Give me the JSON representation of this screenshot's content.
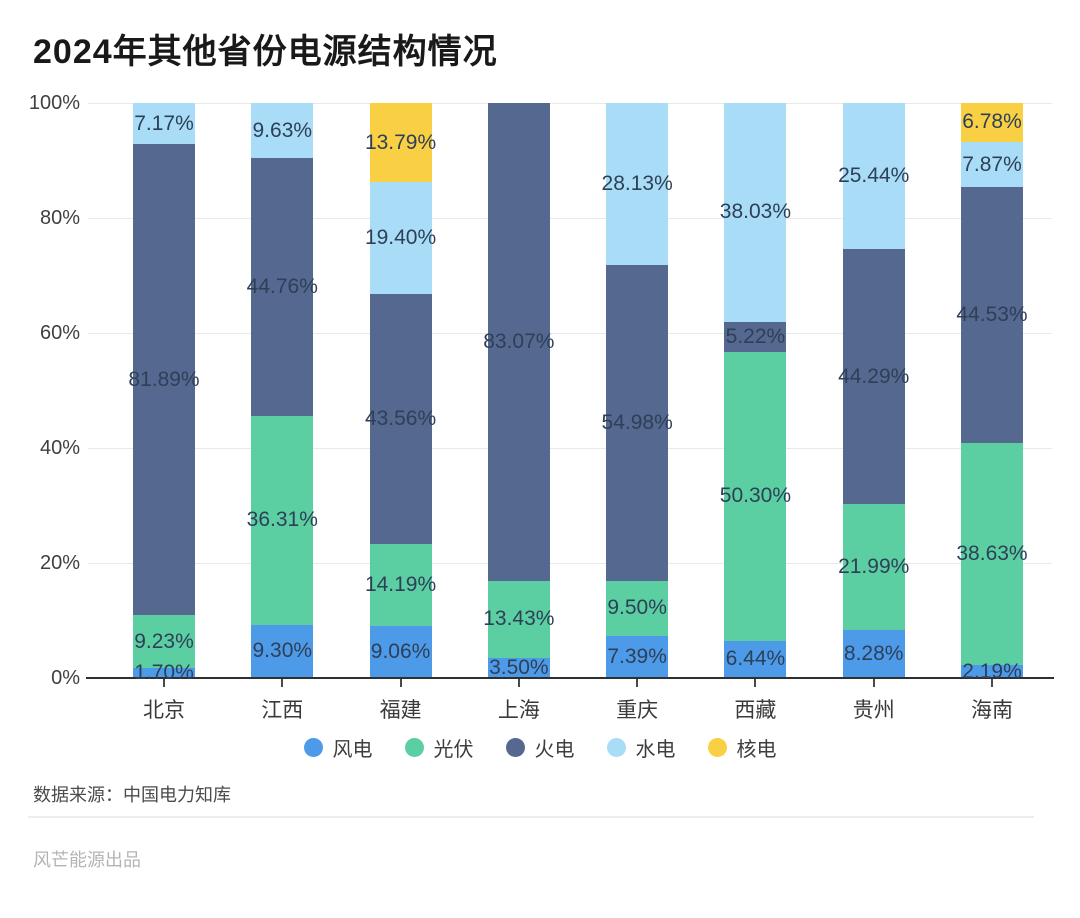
{
  "title": "2024年其他省份电源结构情况",
  "chart_data": {
    "type": "bar",
    "stacked": true,
    "title": "2024年其他省份电源结构情况",
    "xlabel": "",
    "ylabel": "",
    "unit": "%",
    "ylim": [
      0,
      100
    ],
    "yticks": [
      "0%",
      "20%",
      "40%",
      "60%",
      "80%",
      "100%"
    ],
    "grid": true,
    "legend_position": "bottom",
    "categories": [
      "北京",
      "江西",
      "福建",
      "上海",
      "重庆",
      "西藏",
      "贵州",
      "海南"
    ],
    "series": [
      {
        "name": "风电",
        "color": "#4d9ae8",
        "values": [
          1.7,
          9.3,
          9.06,
          3.5,
          7.39,
          6.44,
          8.28,
          2.19
        ]
      },
      {
        "name": "光伏",
        "color": "#5bcfa1",
        "values": [
          9.23,
          36.31,
          14.19,
          13.43,
          9.5,
          50.3,
          21.99,
          38.63
        ]
      },
      {
        "name": "火电",
        "color": "#556890",
        "values": [
          81.89,
          44.76,
          43.56,
          83.07,
          54.98,
          5.22,
          44.29,
          44.53
        ]
      },
      {
        "name": "水电",
        "color": "#a9ddf7",
        "values": [
          7.17,
          9.63,
          19.4,
          0,
          28.13,
          38.03,
          25.44,
          7.87
        ]
      },
      {
        "name": "核电",
        "color": "#f9cf44",
        "values": [
          0,
          0,
          13.79,
          0,
          0,
          0,
          0,
          6.78
        ]
      }
    ]
  },
  "footer": {
    "source": "数据来源：中国电力知库",
    "brand": "风芒能源出品"
  }
}
